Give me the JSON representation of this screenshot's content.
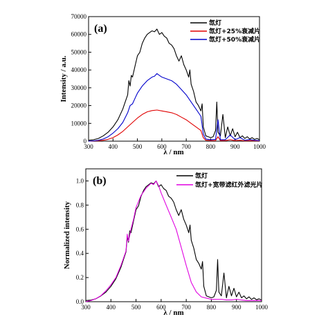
{
  "chart_data": [
    {
      "id": "a",
      "type": "line",
      "panel_label": "(a)",
      "xlabel": "λ / nm",
      "ylabel": "Intensity / a.u.",
      "xlim": [
        300,
        1000
      ],
      "ylim": [
        0,
        70000
      ],
      "x_ticks": [
        300,
        400,
        500,
        600,
        700,
        800,
        900,
        1000
      ],
      "y_ticks": [
        0,
        10000,
        20000,
        30000,
        40000,
        50000,
        60000,
        70000
      ],
      "legend_position": "top-right",
      "series": [
        {
          "name": "氙灯",
          "color": "#000000",
          "x": [
            300,
            320,
            340,
            360,
            380,
            400,
            420,
            440,
            450,
            460,
            465,
            470,
            475,
            480,
            490,
            500,
            510,
            520,
            530,
            540,
            550,
            560,
            570,
            580,
            590,
            600,
            610,
            620,
            630,
            640,
            650,
            660,
            670,
            680,
            690,
            700,
            710,
            715,
            720,
            730,
            740,
            750,
            760,
            765,
            770,
            780,
            790,
            800,
            810,
            820,
            825,
            830,
            840,
            850,
            860,
            870,
            880,
            890,
            900,
            910,
            920,
            930,
            940,
            950,
            960,
            970,
            980,
            990,
            1000
          ],
          "y": [
            500,
            800,
            1500,
            3000,
            5000,
            8000,
            12000,
            18000,
            22000,
            26000,
            34000,
            31000,
            37000,
            36000,
            42000,
            48000,
            50000,
            55000,
            58000,
            60000,
            61000,
            62000,
            61500,
            63000,
            60000,
            61000,
            59000,
            58000,
            55000,
            54000,
            52000,
            48000,
            45000,
            48000,
            43000,
            40000,
            36000,
            40000,
            32000,
            28000,
            22000,
            20000,
            17000,
            21000,
            8000,
            3000,
            2500,
            2000,
            2500,
            6000,
            22000,
            5000,
            3000,
            15000,
            2000,
            8000,
            3000,
            7000,
            2500,
            5000,
            2000,
            3000,
            1500,
            2500,
            1200,
            2000,
            1000,
            1500,
            800
          ]
        },
        {
          "name": "氙灯+25%衰减片",
          "color": "#e00000",
          "x": [
            300,
            320,
            340,
            360,
            380,
            400,
            420,
            440,
            460,
            480,
            500,
            520,
            540,
            560,
            580,
            600,
            620,
            640,
            660,
            680,
            700,
            720,
            740,
            760,
            770,
            780,
            800,
            820,
            830,
            840,
            860,
            880,
            900,
            920,
            940,
            960,
            980,
            1000
          ],
          "y": [
            0,
            100,
            200,
            500,
            1000,
            2000,
            3500,
            5500,
            8000,
            10500,
            13000,
            15000,
            16500,
            17200,
            17500,
            17000,
            16500,
            16000,
            15000,
            13500,
            12000,
            10000,
            8000,
            6000,
            2000,
            500,
            300,
            300,
            2500,
            300,
            300,
            800,
            300,
            500,
            200,
            300,
            200,
            100
          ]
        },
        {
          "name": "氙灯+50%衰减片",
          "color": "#0000cc",
          "x": [
            300,
            320,
            340,
            360,
            380,
            400,
            420,
            440,
            460,
            470,
            480,
            490,
            500,
            520,
            540,
            560,
            570,
            580,
            590,
            600,
            620,
            640,
            660,
            680,
            700,
            720,
            740,
            760,
            770,
            780,
            800,
            820,
            830,
            840,
            860,
            880,
            900,
            920,
            940,
            960,
            980,
            1000
          ],
          "y": [
            0,
            200,
            500,
            1200,
            2500,
            4500,
            7000,
            10500,
            16000,
            20000,
            21000,
            24000,
            27000,
            31000,
            34000,
            36000,
            36500,
            38000,
            37000,
            36000,
            35000,
            34000,
            32000,
            29000,
            26000,
            22000,
            18000,
            14000,
            4000,
            1200,
            800,
            1000,
            12000,
            800,
            800,
            3500,
            800,
            2000,
            500,
            900,
            500,
            300
          ]
        }
      ]
    },
    {
      "id": "b",
      "type": "line",
      "panel_label": "(b)",
      "xlabel": "λ / nm",
      "ylabel": "Normalized intensity",
      "xlim": [
        300,
        1000
      ],
      "ylim": [
        0,
        1.1
      ],
      "x_ticks": [
        300,
        400,
        500,
        600,
        700,
        800,
        900,
        1000
      ],
      "y_ticks": [
        0.0,
        0.2,
        0.4,
        0.6,
        0.8,
        1.0
      ],
      "y_tick_labels": [
        "0.0",
        "0.2",
        "0.4",
        "0.6",
        "0.8",
        "1.0"
      ],
      "legend_position": "top-right",
      "series": [
        {
          "name": "氙灯",
          "color": "#000000",
          "x": [
            300,
            320,
            340,
            360,
            380,
            400,
            420,
            440,
            450,
            460,
            465,
            470,
            475,
            480,
            490,
            500,
            510,
            520,
            530,
            540,
            550,
            560,
            570,
            580,
            590,
            600,
            610,
            620,
            630,
            640,
            650,
            660,
            670,
            680,
            690,
            700,
            710,
            715,
            720,
            730,
            740,
            750,
            760,
            765,
            770,
            780,
            790,
            800,
            810,
            820,
            825,
            830,
            840,
            850,
            860,
            870,
            880,
            890,
            900,
            910,
            920,
            930,
            940,
            950,
            960,
            970,
            980,
            990,
            1000
          ],
          "y": [
            0.01,
            0.013,
            0.024,
            0.048,
            0.079,
            0.127,
            0.19,
            0.286,
            0.349,
            0.413,
            0.54,
            0.492,
            0.587,
            0.571,
            0.667,
            0.762,
            0.794,
            0.873,
            0.921,
            0.952,
            0.968,
            0.984,
            0.976,
            1.0,
            0.952,
            0.968,
            0.937,
            0.921,
            0.873,
            0.857,
            0.825,
            0.762,
            0.714,
            0.762,
            0.683,
            0.635,
            0.571,
            0.635,
            0.508,
            0.444,
            0.349,
            0.317,
            0.27,
            0.333,
            0.127,
            0.048,
            0.04,
            0.032,
            0.04,
            0.095,
            0.349,
            0.079,
            0.048,
            0.238,
            0.032,
            0.127,
            0.048,
            0.111,
            0.04,
            0.079,
            0.032,
            0.048,
            0.024,
            0.04,
            0.019,
            0.032,
            0.016,
            0.024,
            0.013
          ]
        },
        {
          "name": "氙灯+宽带滤红外滤光片",
          "color": "#e000e0",
          "x": [
            300,
            320,
            340,
            360,
            380,
            400,
            420,
            440,
            460,
            465,
            470,
            480,
            490,
            500,
            520,
            540,
            560,
            570,
            580,
            590,
            600,
            620,
            640,
            660,
            680,
            700,
            720,
            740,
            760,
            780,
            800,
            820,
            840,
            860,
            880,
            900,
            920,
            940,
            960,
            980,
            1000
          ],
          "y": [
            0.0,
            0.01,
            0.025,
            0.05,
            0.09,
            0.14,
            0.2,
            0.3,
            0.42,
            0.56,
            0.5,
            0.6,
            0.68,
            0.78,
            0.88,
            0.94,
            0.98,
            0.97,
            1.0,
            0.96,
            0.9,
            0.8,
            0.7,
            0.6,
            0.45,
            0.3,
            0.16,
            0.08,
            0.04,
            0.03,
            0.02,
            0.02,
            0.02,
            0.015,
            0.015,
            0.02,
            0.015,
            0.01,
            0.01,
            0.01,
            0.01
          ]
        }
      ]
    }
  ]
}
